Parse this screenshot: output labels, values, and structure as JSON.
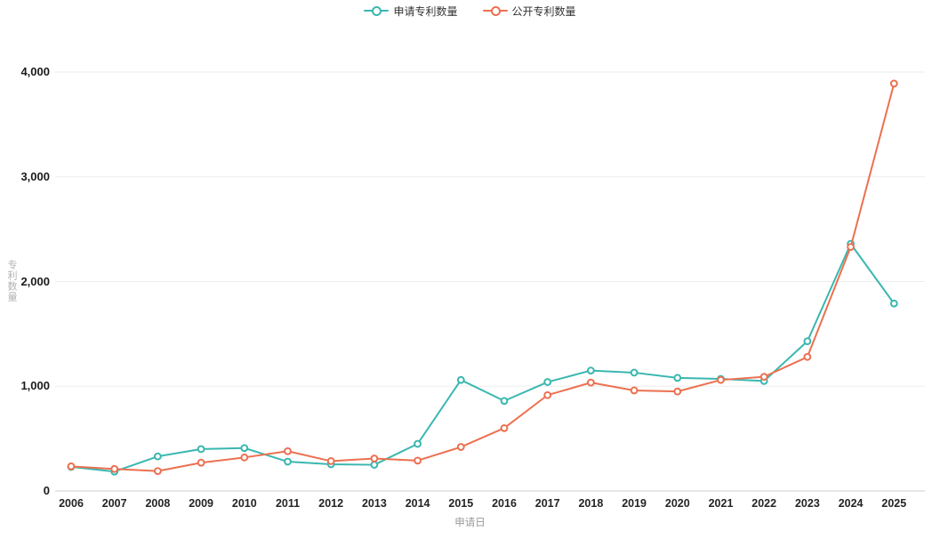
{
  "chart_data": {
    "type": "line",
    "title": "",
    "xlabel": "申请日",
    "ylabel": "专利数量",
    "categories": [
      "2006",
      "2007",
      "2008",
      "2009",
      "2010",
      "2011",
      "2012",
      "2013",
      "2014",
      "2015",
      "2016",
      "2017",
      "2018",
      "2019",
      "2020",
      "2021",
      "2022",
      "2023",
      "2024",
      "2025"
    ],
    "series": [
      {
        "name": "申请专利数量",
        "color": "#3ab7b0",
        "values": [
          230,
          185,
          330,
          400,
          410,
          280,
          255,
          250,
          450,
          1060,
          860,
          1040,
          1150,
          1130,
          1080,
          1070,
          1050,
          1430,
          2360,
          1790
        ]
      },
      {
        "name": "公开专利数量",
        "color": "#ec7050",
        "values": [
          235,
          210,
          190,
          270,
          320,
          380,
          285,
          310,
          290,
          420,
          600,
          915,
          1035,
          960,
          950,
          1060,
          1090,
          1280,
          2330,
          3890
        ]
      }
    ],
    "ylim": [
      0,
      4000
    ],
    "yticks": [
      0,
      1000,
      2000,
      3000,
      4000
    ],
    "ytick_labels": [
      "0",
      "1,000",
      "2,000",
      "3,000",
      "4,000"
    ],
    "grid": true,
    "legend_position": "top-center",
    "marker": "open-circle",
    "colors": {
      "grid_line": "#ededed",
      "axis_line": "#cfcfcf",
      "tick_text": "#1a1a1a",
      "axis_title_text": "#9a9a9a"
    }
  }
}
